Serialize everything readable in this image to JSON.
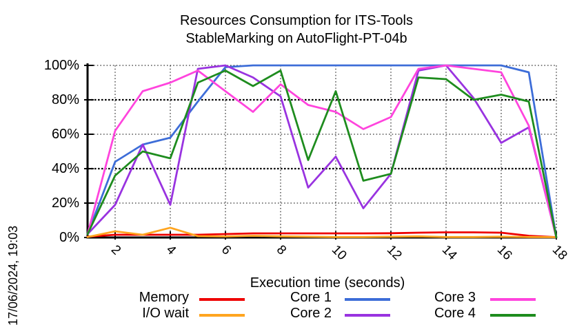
{
  "title": {
    "line1": "Resources Consumption for ITS-Tools",
    "line2": "StableMarking on AutoFlight-PT-04b"
  },
  "timestamp_label": "17/06/2024, 19:03",
  "axes": {
    "xlabel": "Execution time (seconds)",
    "x_tick_labels": [
      "2",
      "4",
      "6",
      "8",
      "10",
      "12",
      "14",
      "16",
      "18"
    ],
    "x_tick_values": [
      2,
      4,
      6,
      8,
      10,
      12,
      14,
      16,
      18
    ],
    "y_tick_labels": [
      "0%",
      "20%",
      "40%",
      "60%",
      "80%",
      "100%"
    ],
    "y_tick_values": [
      0,
      20,
      40,
      60,
      80,
      100
    ]
  },
  "legend": {
    "position": "bottom",
    "columns": 3
  },
  "chart_data": {
    "type": "line",
    "title": "Resources Consumption for ITS-Tools StableMarking on AutoFlight-PT-04b",
    "xlabel": "Execution time (seconds)",
    "ylabel": "",
    "x_range": [
      1,
      18
    ],
    "y_range": [
      0,
      100
    ],
    "grid": true,
    "x": [
      1,
      2,
      3,
      4,
      5,
      6,
      7,
      8,
      9,
      10,
      11,
      12,
      13,
      14,
      15,
      16,
      17,
      18
    ],
    "series": [
      {
        "name": "Memory",
        "color": "#ee0000",
        "values": [
          0.5,
          1.6,
          1.6,
          1.6,
          1.6,
          2,
          2.4,
          2.4,
          2.4,
          2.4,
          2.4,
          2.5,
          2.8,
          3,
          3,
          2.8,
          1,
          0.2
        ]
      },
      {
        "name": "I/O wait",
        "color": "#ffa520",
        "values": [
          0.3,
          3.6,
          1.6,
          5.7,
          0.8,
          0.6,
          1,
          0.7,
          0.5,
          0.3,
          0.3,
          0.5,
          0.7,
          0.3,
          0.3,
          0.5,
          0.3,
          0.2
        ]
      },
      {
        "name": "Core 1",
        "color": "#3d6dd8",
        "values": [
          2,
          44,
          54,
          58,
          79,
          99,
          100,
          100,
          100,
          100,
          100,
          100,
          100,
          100,
          100,
          100,
          96,
          0
        ]
      },
      {
        "name": "Core 2",
        "color": "#9933e0",
        "values": [
          2,
          19,
          54,
          19,
          98,
          100,
          93,
          82,
          29,
          47,
          17,
          37,
          97,
          100,
          81,
          55,
          64,
          0
        ]
      },
      {
        "name": "Core 3",
        "color": "#ff44dd",
        "values": [
          2,
          62,
          85,
          90,
          97,
          85,
          73,
          89,
          77,
          73,
          63,
          70,
          98,
          100,
          98,
          96,
          65,
          0
        ]
      },
      {
        "name": "Core 4",
        "color": "#1e8c1e",
        "values": [
          2,
          36,
          50,
          46,
          90,
          97,
          88,
          97,
          45,
          85,
          33,
          37,
          93,
          92,
          80,
          83,
          79,
          0
        ]
      }
    ]
  }
}
